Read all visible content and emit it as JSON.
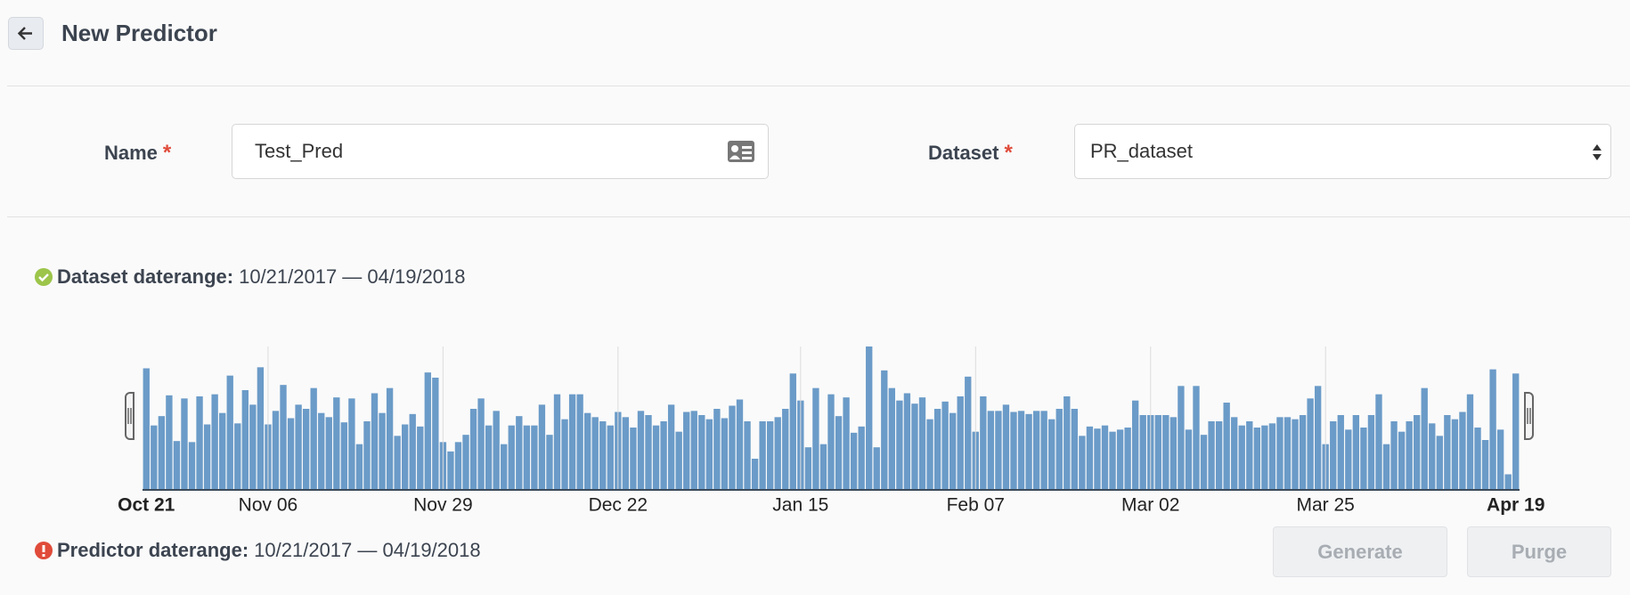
{
  "header": {
    "title": "New Predictor"
  },
  "form": {
    "fields": [
      {
        "label": "Name",
        "required": "*",
        "value": "Test_Pred"
      },
      {
        "label": "Dataset",
        "required": "*",
        "value": "PR_dataset"
      }
    ]
  },
  "dataset_daterange": {
    "label": "Dataset daterange:",
    "value": "10/21/2017 — 04/19/2018"
  },
  "chart_data": {
    "type": "bar",
    "color": "#6b9bc8",
    "ylim": [
      0,
      138
    ],
    "grid": true,
    "categories": [
      "Oct 21",
      null,
      null,
      null,
      null,
      null,
      null,
      null,
      null,
      null,
      null,
      null,
      null,
      null,
      null,
      null,
      "Nov 06",
      null,
      null,
      null,
      null,
      null,
      null,
      null,
      null,
      null,
      null,
      null,
      null,
      null,
      null,
      null,
      null,
      null,
      null,
      null,
      null,
      null,
      null,
      "Nov 29",
      null,
      null,
      null,
      null,
      null,
      null,
      null,
      null,
      null,
      null,
      null,
      null,
      null,
      null,
      null,
      null,
      null,
      null,
      null,
      null,
      null,
      null,
      "Dec 22",
      null,
      null,
      null,
      null,
      null,
      null,
      null,
      null,
      null,
      null,
      null,
      null,
      null,
      null,
      null,
      null,
      null,
      null,
      null,
      null,
      null,
      null,
      null,
      "Jan 15",
      null,
      null,
      null,
      null,
      null,
      null,
      null,
      null,
      null,
      null,
      null,
      null,
      null,
      null,
      null,
      null,
      null,
      null,
      null,
      null,
      null,
      null,
      "Feb 07",
      null,
      null,
      null,
      null,
      null,
      null,
      null,
      null,
      null,
      null,
      null,
      null,
      null,
      null,
      null,
      null,
      null,
      null,
      null,
      null,
      null,
      null,
      "Mar 02",
      null,
      null,
      null,
      null,
      null,
      null,
      null,
      null,
      null,
      null,
      null,
      null,
      null,
      null,
      null,
      null,
      null,
      null,
      null,
      null,
      null,
      null,
      "Mar 25",
      null,
      null,
      null,
      null,
      null,
      null,
      null,
      null,
      null,
      null,
      null,
      null,
      null,
      null,
      null,
      null,
      null,
      null,
      null,
      null,
      null,
      null,
      null,
      null,
      "Apr 19"
    ],
    "values": [
      117,
      62,
      71,
      91,
      47,
      88,
      46,
      90,
      63,
      92,
      74,
      110,
      64,
      96,
      82,
      118,
      63,
      76,
      101,
      69,
      82,
      78,
      98,
      74,
      70,
      89,
      65,
      88,
      44,
      66,
      93,
      74,
      98,
      52,
      63,
      73,
      61,
      113,
      108,
      46,
      37,
      46,
      53,
      78,
      88,
      62,
      76,
      44,
      62,
      71,
      62,
      62,
      82,
      53,
      92,
      68,
      92,
      92,
      74,
      70,
      66,
      62,
      75,
      70,
      60,
      76,
      72,
      62,
      66,
      82,
      56,
      75,
      76,
      72,
      68,
      78,
      69,
      81,
      87,
      66,
      30,
      66,
      66,
      70,
      78,
      112,
      86,
      41,
      98,
      44,
      92,
      71,
      89,
      55,
      61,
      138,
      41,
      115,
      98,
      86,
      93,
      83,
      89,
      68,
      78,
      85,
      74,
      90,
      109,
      56,
      90,
      76,
      76,
      82,
      75,
      76,
      73,
      76,
      76,
      68,
      78,
      90,
      78,
      52,
      61,
      59,
      62,
      56,
      58,
      60,
      86,
      72,
      72,
      72,
      72,
      70,
      100,
      58,
      100,
      53,
      66,
      66,
      84,
      70,
      62,
      66,
      60,
      62,
      64,
      70,
      70,
      68,
      72,
      88,
      100,
      44,
      66,
      72,
      58,
      72,
      60,
      72,
      92,
      44,
      66,
      56,
      66,
      72,
      98,
      64,
      52,
      72,
      68,
      75,
      92,
      60,
      48,
      116,
      58,
      15,
      112
    ]
  },
  "predictor_daterange": {
    "label": "Predictor daterange:",
    "value": "10/21/2017 — 04/19/2018"
  },
  "buttons": [
    "Generate",
    "Purge"
  ]
}
